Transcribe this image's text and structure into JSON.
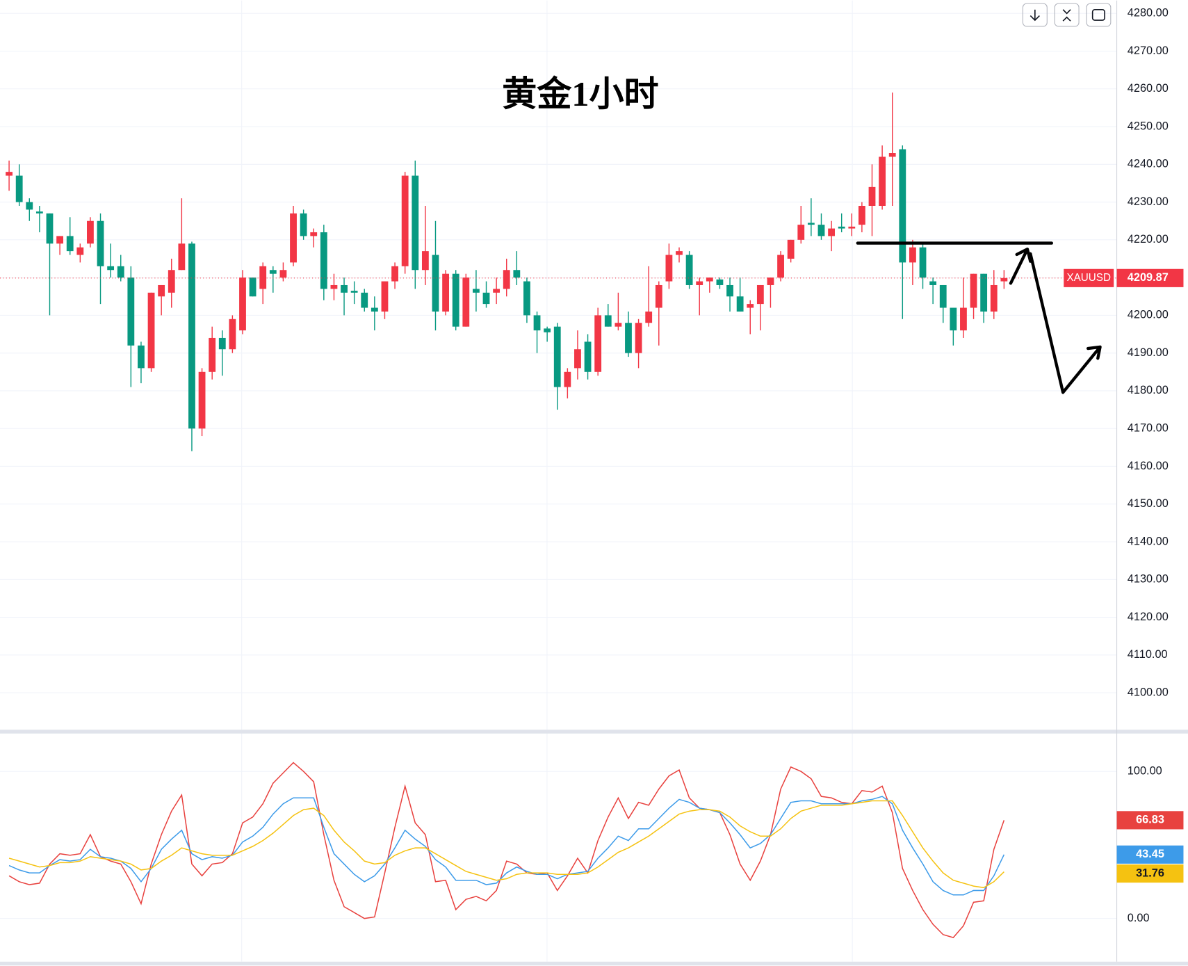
{
  "chart_data": [
    {
      "type": "candlestick",
      "title": "黄金1小时",
      "symbol": "XAUUSD",
      "up_color": "#f23645",
      "down_color": "#089981",
      "open": [
        4237,
        4237,
        4230,
        4227.5,
        4227,
        4219,
        4221,
        4216,
        4219,
        4225,
        4213,
        4213,
        4210,
        4192,
        4186,
        4205,
        4206,
        4212,
        4219,
        4170,
        4185,
        4194,
        4191,
        4196,
        4210,
        4207,
        4212,
        4210,
        4214,
        4227,
        4221,
        4222,
        4207,
        4208,
        4206.5,
        4206,
        4202,
        4201,
        4209,
        4213,
        4237,
        4212,
        4216,
        4201,
        4211,
        4197,
        4207,
        4206,
        4206,
        4207,
        4212,
        4209,
        4200,
        4196.5,
        4197,
        4181,
        4186,
        4193,
        4185,
        4200,
        4197,
        4198,
        4190,
        4198,
        4202,
        4209,
        4216,
        4216,
        4208,
        4209,
        4209.5,
        4208,
        4205,
        4202,
        4203,
        4208,
        4210,
        4215,
        4220,
        4224.5,
        4224,
        4221,
        4223.5,
        4223,
        4224,
        4229,
        4229,
        4242,
        4244,
        4214,
        4218,
        4209,
        4208,
        4202,
        4196,
        4202,
        4211,
        4201,
        4209
      ],
      "high": [
        4241,
        4240,
        4231,
        4229,
        4227,
        4221,
        4226,
        4219,
        4226,
        4227,
        4219,
        4216,
        4213,
        4193,
        4206,
        4208,
        4215,
        4231,
        4219.5,
        4186,
        4197,
        4196,
        4200,
        4212,
        4210,
        4214,
        4213,
        4214,
        4229,
        4228,
        4223,
        4224,
        4211,
        4210,
        4209,
        4207,
        4205,
        4209,
        4214,
        4238,
        4241,
        4229,
        4225,
        4212,
        4212,
        4211,
        4212,
        4209,
        4210,
        4215,
        4217,
        4210,
        4201,
        4197,
        4198,
        4186,
        4196,
        4195,
        4202,
        4203,
        4206,
        4201,
        4199,
        4213,
        4209,
        4219,
        4218,
        4217,
        4210,
        4210,
        4210,
        4210,
        4210,
        4204,
        4208,
        4210,
        4217,
        4220,
        4229,
        4231,
        4227,
        4225,
        4227,
        4227,
        4230,
        4240,
        4245,
        4259,
        4245,
        4220,
        4219,
        4210,
        4208,
        4202,
        4210,
        4211,
        4211,
        4212,
        4212
      ],
      "low": [
        4233,
        4229,
        4225,
        4222,
        4200,
        4216,
        4216,
        4214,
        4218,
        4203,
        4210,
        4209,
        4181,
        4182,
        4185,
        4200,
        4202,
        4212,
        4164,
        4168,
        4183,
        4184,
        4190,
        4195,
        4205,
        4203,
        4206,
        4209,
        4213,
        4220,
        4218,
        4204,
        4204,
        4200,
        4203,
        4201,
        4196,
        4199,
        4207,
        4211,
        4207,
        4208,
        4196,
        4200,
        4196,
        4197,
        4201,
        4202,
        4203,
        4205,
        4208,
        4198,
        4190,
        4193,
        4175,
        4178,
        4183,
        4183,
        4184,
        4197,
        4196,
        4189,
        4186,
        4197,
        4192,
        4207,
        4214,
        4207,
        4200,
        4206,
        4207,
        4201,
        4201,
        4195,
        4196,
        4202,
        4209,
        4214,
        4219,
        4221,
        4220,
        4217,
        4222,
        4221,
        4222,
        4221,
        4228,
        4229,
        4199,
        4208,
        4207,
        4203,
        4198,
        4192,
        4194,
        4199,
        4198,
        4199,
        4207
      ],
      "close": [
        4238,
        4230,
        4228,
        4227,
        4219,
        4221,
        4217,
        4218,
        4225,
        4213,
        4212,
        4210,
        4192,
        4186,
        4206,
        4208,
        4212,
        4219,
        4170,
        4185,
        4194,
        4191,
        4199,
        4210,
        4205,
        4213,
        4211,
        4212,
        4227,
        4221,
        4222,
        4207,
        4208,
        4206,
        4206,
        4202,
        4201,
        4209,
        4213,
        4237,
        4212,
        4217,
        4201,
        4211,
        4197,
        4210,
        4206,
        4203,
        4207,
        4212,
        4210,
        4200,
        4196,
        4195.5,
        4181,
        4185,
        4191,
        4185,
        4200,
        4197,
        4198,
        4190,
        4198,
        4201,
        4208,
        4216,
        4217,
        4208,
        4209,
        4210,
        4208,
        4205,
        4201,
        4203,
        4208,
        4210,
        4216,
        4220,
        4224,
        4224,
        4221,
        4223,
        4223,
        4223.5,
        4229,
        4234,
        4242,
        4243,
        4214,
        4218,
        4210,
        4208,
        4202,
        4196,
        4202,
        4211,
        4201,
        4208,
        4209.87
      ],
      "ylim": [
        4090.2,
        4283.4
      ],
      "yticks": [
        {
          "value": 4100,
          "label": "4100.00"
        },
        {
          "value": 4110,
          "label": "4110.00"
        },
        {
          "value": 4120,
          "label": "4120.00"
        },
        {
          "value": 4130,
          "label": "4130.00"
        },
        {
          "value": 4140,
          "label": "4140.00"
        },
        {
          "value": 4150,
          "label": "4150.00"
        },
        {
          "value": 4160,
          "label": "4160.00"
        },
        {
          "value": 4170,
          "label": "4170.00"
        },
        {
          "value": 4180,
          "label": "4180.00"
        },
        {
          "value": 4190,
          "label": "4190.00"
        },
        {
          "value": 4200,
          "label": "4200.00"
        },
        {
          "value": 4210,
          "label": "4210.00"
        },
        {
          "value": 4220,
          "label": "4220.00"
        },
        {
          "value": 4230,
          "label": "4230.00"
        },
        {
          "value": 4240,
          "label": "4240.00"
        },
        {
          "value": 4250,
          "label": "4250.00"
        },
        {
          "value": 4260,
          "label": "4260.00"
        },
        {
          "value": 4270,
          "label": "4270.00"
        },
        {
          "value": 4280,
          "label": "4280.00"
        }
      ],
      "grid": true
    },
    {
      "type": "line",
      "ylim": [
        -29.4,
        125.8
      ],
      "yticks": [
        {
          "value": 0,
          "label": "0.00"
        },
        {
          "value": 100,
          "label": "100.00"
        }
      ],
      "grid": true,
      "series": [
        {
          "color": "#e8423f",
          "values": [
            29,
            25,
            23,
            24,
            37,
            44,
            43,
            44,
            57,
            42,
            39,
            37,
            25,
            10,
            37,
            57,
            73,
            84,
            37,
            29,
            37,
            38,
            44,
            65,
            69,
            78,
            92,
            99,
            106,
            100,
            93,
            57,
            26,
            8,
            4,
            0,
            1,
            31,
            62,
            90,
            65,
            57,
            25,
            26,
            6,
            13,
            15,
            12,
            19,
            39,
            37,
            31,
            30,
            31,
            19,
            29,
            41,
            31,
            53,
            69,
            82,
            68,
            79,
            77,
            88,
            97,
            101,
            82,
            75,
            74,
            72,
            57,
            37,
            26,
            39,
            57,
            88,
            103,
            100,
            95,
            83,
            82,
            79,
            78,
            87,
            86,
            90,
            72,
            34,
            19,
            6,
            -4,
            -11,
            -13,
            -5,
            11,
            12,
            47,
            66.83
          ]
        },
        {
          "color": "#3d9be9",
          "values": [
            36,
            33,
            31,
            31,
            36,
            40,
            39,
            40,
            47,
            42,
            41,
            39,
            34,
            25,
            34,
            47,
            54,
            60,
            44,
            40,
            42,
            41,
            43,
            52,
            56,
            62,
            71,
            78,
            82,
            82,
            82,
            62,
            44,
            37,
            30,
            25,
            29,
            37,
            48,
            60,
            54,
            49,
            40,
            35,
            26,
            26,
            26,
            23,
            24,
            31,
            35,
            32,
            30,
            30,
            27,
            30,
            31,
            32,
            41,
            48,
            56,
            53,
            61,
            61,
            68,
            75,
            81,
            79,
            75,
            74,
            72,
            65,
            57,
            48,
            51,
            57,
            68,
            79,
            80,
            80,
            78,
            78,
            78,
            78,
            80,
            81,
            83,
            78,
            60,
            48,
            37,
            25,
            19,
            16,
            16,
            19,
            19,
            29,
            43.45
          ]
        },
        {
          "color": "#f5c211",
          "values": [
            41,
            39,
            37,
            35,
            36,
            38,
            38,
            39,
            42,
            41,
            40,
            39,
            37,
            33,
            34,
            39,
            43,
            48,
            46,
            44,
            43,
            43,
            43,
            46,
            49,
            53,
            58,
            64,
            70,
            74,
            75,
            70,
            60,
            52,
            46,
            39,
            37,
            38,
            43,
            46,
            48,
            48,
            44,
            40,
            36,
            32,
            30,
            28,
            26,
            27,
            30,
            31,
            31,
            31,
            30,
            30,
            30,
            31,
            35,
            40,
            45,
            48,
            52,
            56,
            61,
            66,
            71,
            73,
            74,
            74,
            73,
            69,
            63,
            59,
            56,
            56,
            61,
            68,
            73,
            75,
            77,
            77,
            77,
            78,
            79,
            80,
            80,
            80,
            70,
            59,
            48,
            39,
            31,
            26,
            24,
            22,
            21,
            25,
            31.76
          ]
        }
      ]
    }
  ]
}
